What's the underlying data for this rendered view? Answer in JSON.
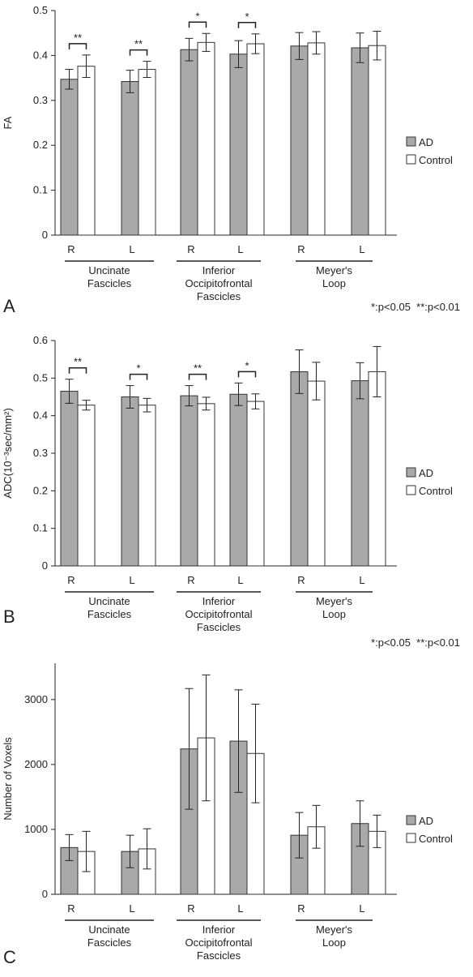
{
  "chart_data": [
    {
      "type": "bar",
      "panel": "A",
      "y_label": "FA",
      "note": "*:p<0.05  **:p<0.01",
      "categories": [
        "R",
        "L",
        "R",
        "L",
        "R",
        "L"
      ],
      "groups": [
        {
          "label": [
            "Uncinate",
            "Fascicles"
          ]
        },
        {
          "label": [
            "Inferior",
            "Occipitofrontal",
            "Fascicles"
          ]
        },
        {
          "label": [
            "Meyer's",
            "Loop"
          ]
        }
      ],
      "series": [
        {
          "name": "AD",
          "color": "#a9a9a9",
          "values": [
            0.347,
            0.342,
            0.413,
            0.403,
            0.421,
            0.417
          ],
          "errors": [
            0.022,
            0.025,
            0.025,
            0.03,
            0.03,
            0.033
          ]
        },
        {
          "name": "Control",
          "color": "#ffffff",
          "values": [
            0.376,
            0.369,
            0.429,
            0.426,
            0.428,
            0.422
          ],
          "errors": [
            0.025,
            0.018,
            0.02,
            0.022,
            0.025,
            0.032
          ]
        }
      ],
      "significance": [
        "**",
        "**",
        "*",
        "*",
        null,
        null
      ],
      "ylim": [
        0,
        0.5
      ],
      "yticks": [
        0,
        0.1,
        0.2,
        0.3,
        0.4,
        0.5
      ]
    },
    {
      "type": "bar",
      "panel": "B",
      "y_label": "ADC(10⁻³sec/mm²)",
      "note": "*:p<0.05  **:p<0.01",
      "categories": [
        "R",
        "L",
        "R",
        "L",
        "R",
        "L"
      ],
      "groups": [
        {
          "label": [
            "Uncinate",
            "Fascicles"
          ]
        },
        {
          "label": [
            "Inferior",
            "Occipitofrontal",
            "Fascicles"
          ]
        },
        {
          "label": [
            "Meyer's",
            "Loop"
          ]
        }
      ],
      "series": [
        {
          "name": "AD",
          "color": "#a9a9a9",
          "values": [
            0.465,
            0.45,
            0.453,
            0.457,
            0.517,
            0.493
          ],
          "errors": [
            0.032,
            0.03,
            0.027,
            0.03,
            0.058,
            0.048
          ]
        },
        {
          "name": "Control",
          "color": "#ffffff",
          "values": [
            0.428,
            0.428,
            0.432,
            0.438,
            0.492,
            0.517
          ],
          "errors": [
            0.013,
            0.018,
            0.017,
            0.02,
            0.05,
            0.067
          ]
        }
      ],
      "significance": [
        "**",
        "*",
        "**",
        "*",
        null,
        null
      ],
      "ylim": [
        0,
        0.6
      ],
      "yticks": [
        0,
        0.1,
        0.2,
        0.3,
        0.4,
        0.5,
        0.6
      ]
    },
    {
      "type": "bar",
      "panel": "C",
      "y_label": "Number of Voxels",
      "categories": [
        "R",
        "L",
        "R",
        "L",
        "R",
        "L"
      ],
      "groups": [
        {
          "label": [
            "Uncinate",
            "Fascicles"
          ]
        },
        {
          "label": [
            "Inferior",
            "Occipitofrontal",
            "Fascicles"
          ]
        },
        {
          "label": [
            "Meyer's",
            "Loop"
          ]
        }
      ],
      "series": [
        {
          "name": "AD",
          "color": "#a9a9a9",
          "values": [
            720,
            660,
            2240,
            2360,
            910,
            1090
          ],
          "errors": [
            200,
            250,
            930,
            790,
            350,
            350
          ]
        },
        {
          "name": "Control",
          "color": "#ffffff",
          "values": [
            660,
            700,
            2410,
            2170,
            1040,
            970
          ],
          "errors": [
            310,
            310,
            970,
            760,
            330,
            250
          ]
        }
      ],
      "ylim": [
        0,
        3560
      ],
      "yticks": [
        0,
        1000,
        2000,
        3000
      ]
    }
  ]
}
